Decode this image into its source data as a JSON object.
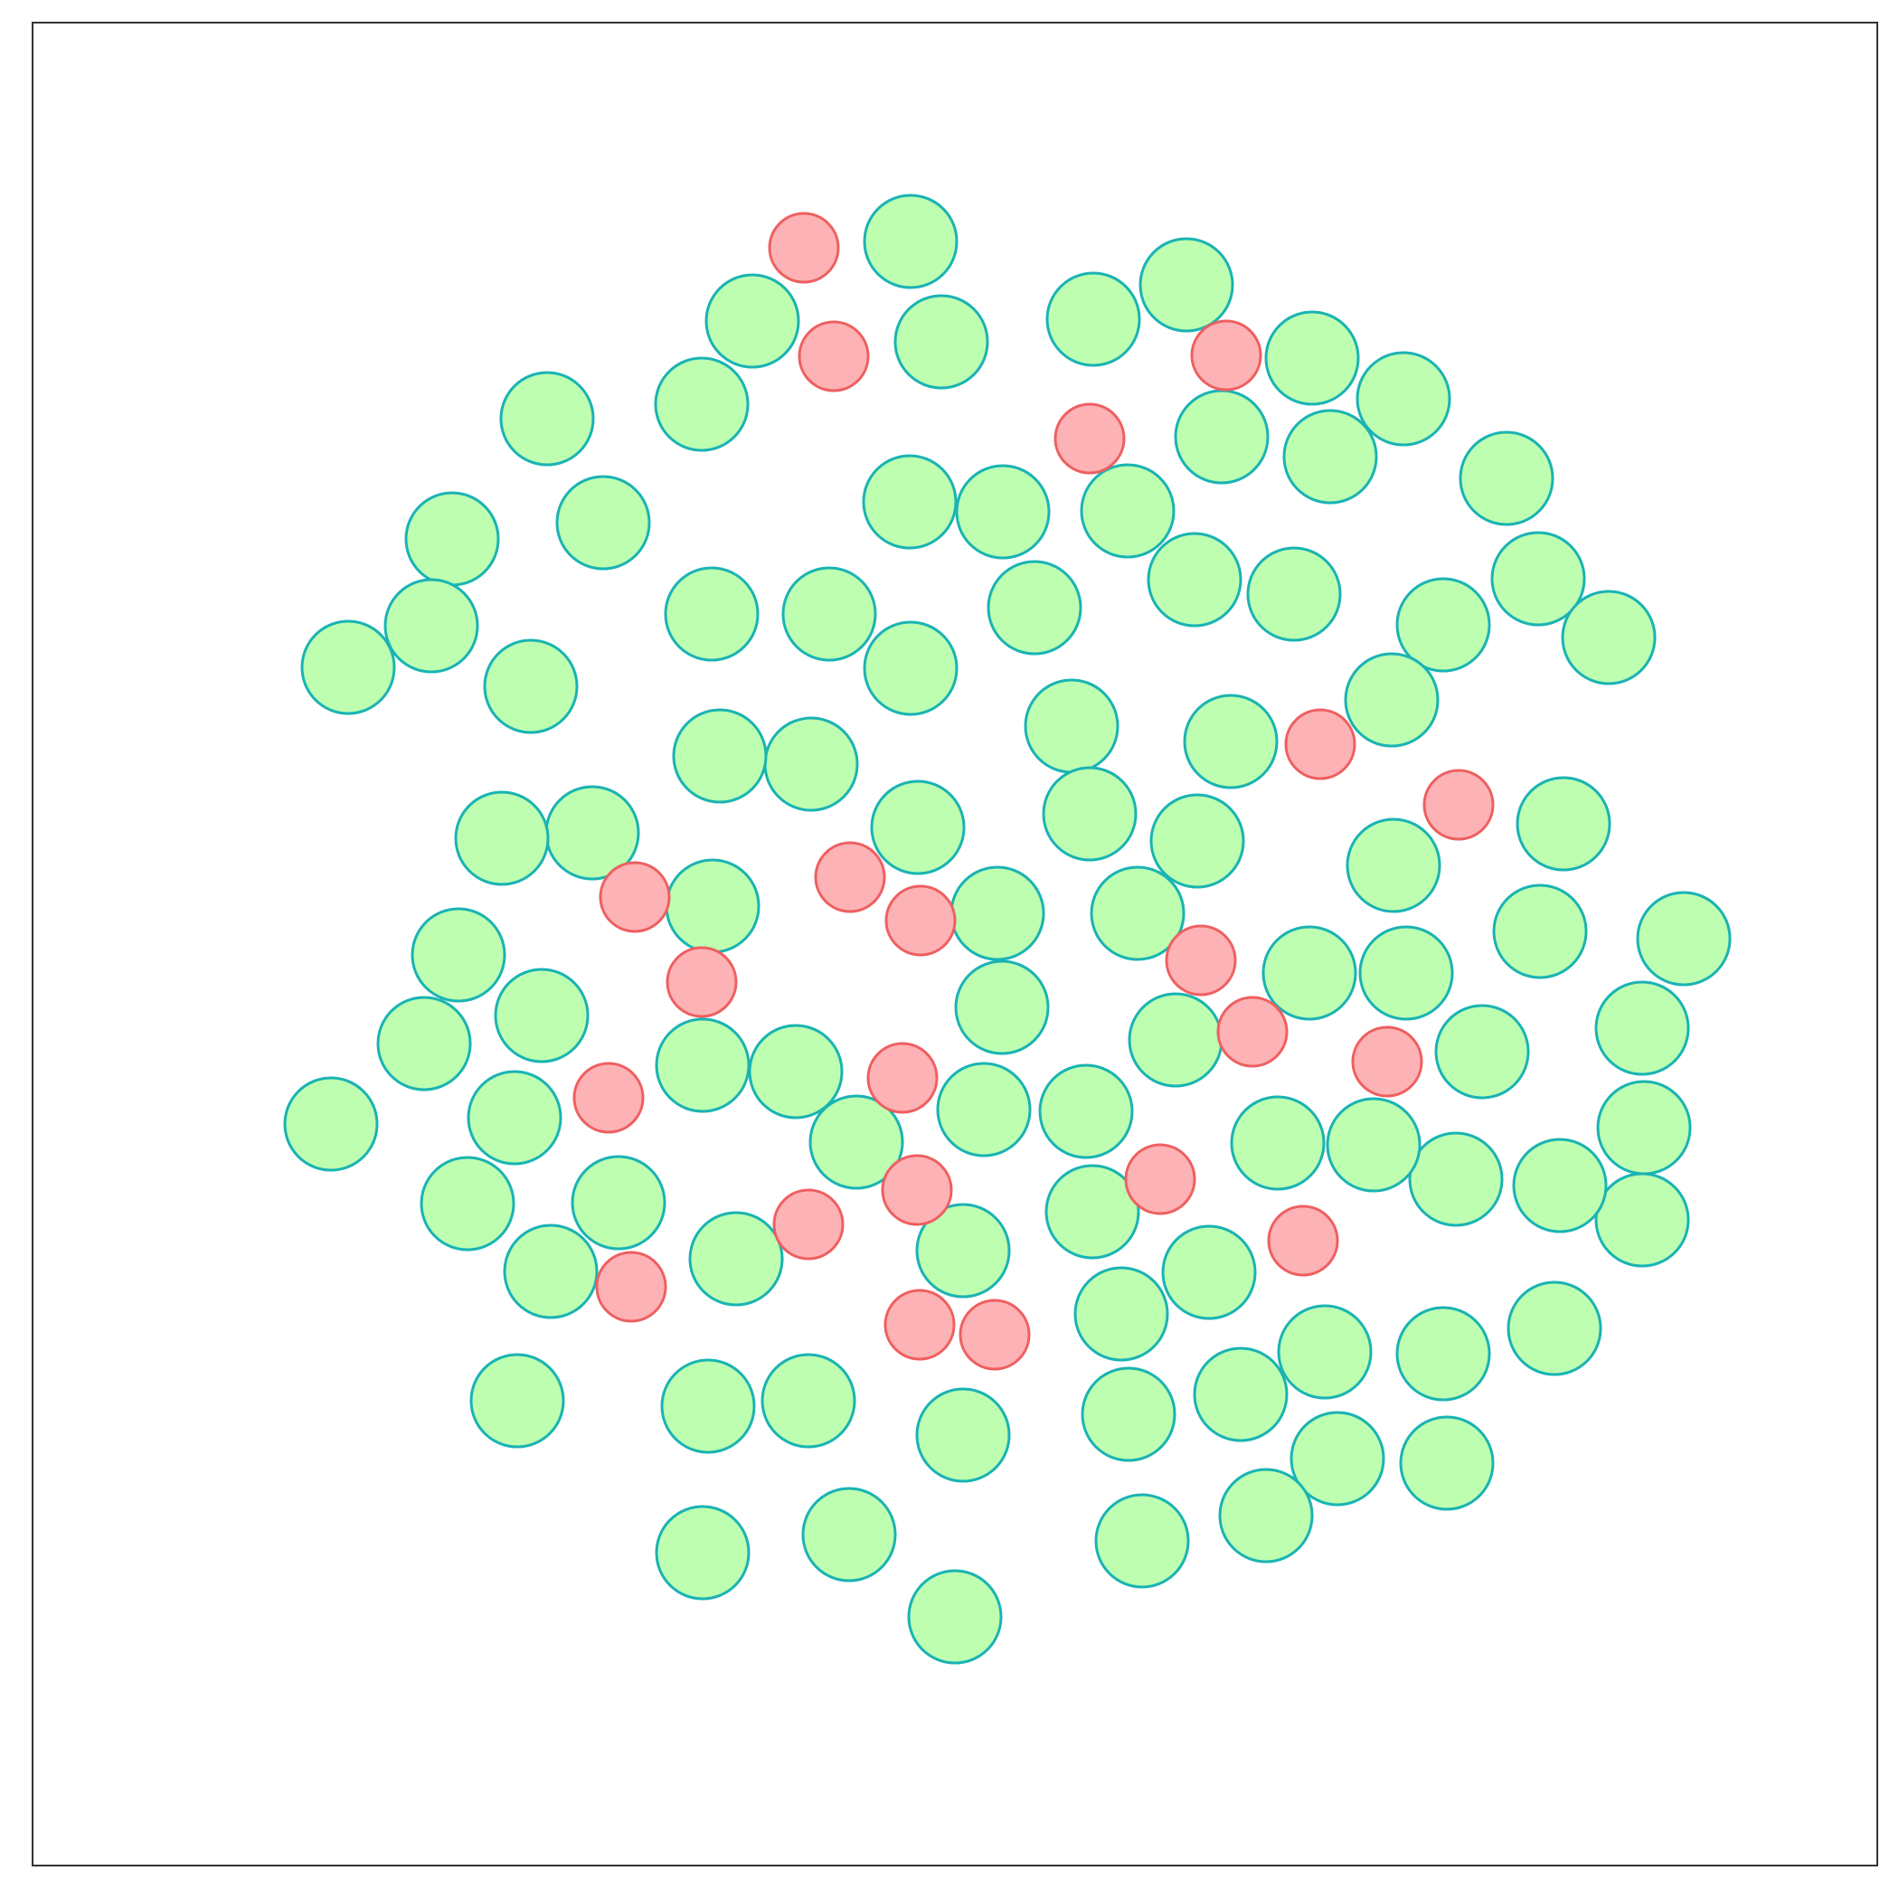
{
  "figure": {
    "description_free": true,
    "colors": {
      "large_fill": "#bdfeb1",
      "large_stroke": "#1ab3b3",
      "small_fill": "#fdb2b5",
      "small_stroke": "#ee5f60",
      "frame_stroke": "#333333",
      "background": "#ffffff"
    },
    "circle_sizes": {
      "large_radius": 51,
      "small_radius": 38
    }
  }
}
